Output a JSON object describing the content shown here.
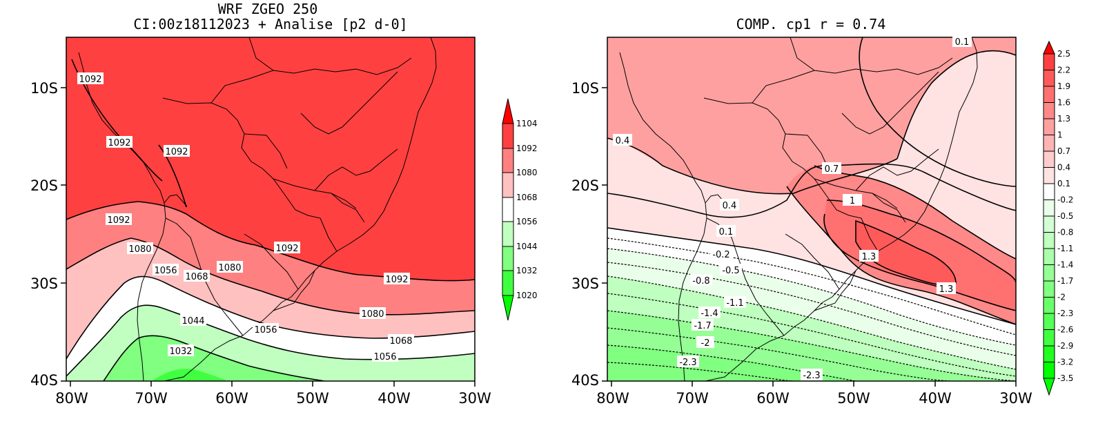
{
  "left_panel": {
    "title_line1": "WRF ZGEO 250",
    "title_line2": "CI:00z18112023 + Analise  [p2 d-0]",
    "lat_ticks": [
      "10S",
      "20S",
      "30S",
      "40S"
    ],
    "lon_ticks": [
      "80W",
      "70W",
      "60W",
      "50W",
      "40W",
      "30W"
    ],
    "contour_labels": [
      "1092",
      "1092",
      "1092",
      "1092",
      "1092",
      "1092",
      "1080",
      "1080",
      "1080",
      "1068",
      "1068",
      "1056",
      "1056",
      "1056",
      "1044",
      "1032"
    ],
    "colorbar_labels": [
      "1104",
      "1092",
      "1080",
      "1068",
      "1056",
      "1044",
      "1032",
      "1020"
    ]
  },
  "right_panel": {
    "title": "COMP. cp1  r =  0.74",
    "lat_ticks": [
      "10S",
      "20S",
      "30S",
      "40S"
    ],
    "lon_ticks": [
      "80W",
      "70W",
      "60W",
      "50W",
      "40W",
      "30W"
    ],
    "contour_labels": [
      "0.1",
      "0.4",
      "0.7",
      "0.4",
      "1",
      "0.1",
      "-0.2",
      "1.3",
      "-0.5",
      "-0.8",
      "1.3",
      "-1.1",
      "-1.4",
      "-1.7",
      "-2",
      "-2.3",
      "-2.3"
    ],
    "colorbar_labels": [
      "2.5",
      "2.2",
      "1.9",
      "1.6",
      "1.3",
      "1",
      "0.7",
      "0.4",
      "0.1",
      "-0.2",
      "-0.5",
      "-0.8",
      "-1.1",
      "-1.4",
      "-1.7",
      "-2",
      "-2.3",
      "-2.6",
      "-2.9",
      "-3.2",
      "-3.5"
    ]
  },
  "colors": {
    "left_scale": [
      "#ff0000",
      "#ff4040",
      "#ff8080",
      "#ffc0c0",
      "#ffffff",
      "#c0ffc0",
      "#80ff80",
      "#40ff40",
      "#00ff00"
    ],
    "right_scale": [
      "#ff0000",
      "#ff4040",
      "#ff5a5a",
      "#ff7070",
      "#ff8888",
      "#ffa0a0",
      "#ffb4b4",
      "#ffcccc",
      "#ffe2e2",
      "#ffffff",
      "#eaffea",
      "#d4ffd4",
      "#bfffbf",
      "#aaffaa",
      "#95ff95",
      "#80ff80",
      "#6aff6a",
      "#55ff55",
      "#40ff40",
      "#20ff20",
      "#00ff00"
    ]
  }
}
